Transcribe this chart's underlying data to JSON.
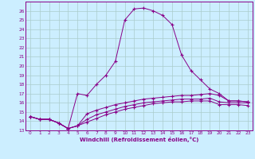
{
  "xlabel": "Windchill (Refroidissement éolien,°C)",
  "bg_color": "#cceeff",
  "grid_color": "#aacccc",
  "line_color": "#880088",
  "xlim": [
    -0.5,
    23.5
  ],
  "ylim": [
    13,
    27
  ],
  "xticks": [
    0,
    1,
    2,
    3,
    4,
    5,
    6,
    7,
    8,
    9,
    10,
    11,
    12,
    13,
    14,
    15,
    16,
    17,
    18,
    19,
    20,
    21,
    22,
    23
  ],
  "yticks": [
    13,
    14,
    15,
    16,
    17,
    18,
    19,
    20,
    21,
    22,
    23,
    24,
    25,
    26
  ],
  "line1_x": [
    0,
    1,
    2,
    3,
    4,
    5,
    6,
    7,
    8,
    9,
    10,
    11,
    12,
    13,
    14,
    15,
    16,
    17,
    18,
    19,
    20,
    21,
    22,
    23
  ],
  "line1_y": [
    14.5,
    14.2,
    14.2,
    13.8,
    13.2,
    17.0,
    16.8,
    18.0,
    19.0,
    20.5,
    25.0,
    26.2,
    26.3,
    26.0,
    25.5,
    24.5,
    21.2,
    19.5,
    18.5,
    17.5,
    17.0,
    16.2,
    16.2,
    16.1
  ],
  "line2_x": [
    0,
    1,
    2,
    3,
    4,
    5,
    6,
    7,
    8,
    9,
    10,
    11,
    12,
    13,
    14,
    15,
    16,
    17,
    18,
    19,
    20,
    21,
    22,
    23
  ],
  "line2_y": [
    14.5,
    14.2,
    14.2,
    13.8,
    13.2,
    13.5,
    14.8,
    15.2,
    15.5,
    15.8,
    16.0,
    16.2,
    16.4,
    16.5,
    16.6,
    16.7,
    16.8,
    16.8,
    16.9,
    17.0,
    16.8,
    16.2,
    16.2,
    16.1
  ],
  "line3_x": [
    0,
    1,
    2,
    3,
    4,
    5,
    6,
    7,
    8,
    9,
    10,
    11,
    12,
    13,
    14,
    15,
    16,
    17,
    18,
    19,
    20,
    21,
    22,
    23
  ],
  "line3_y": [
    14.5,
    14.2,
    14.2,
    13.8,
    13.2,
    13.5,
    14.2,
    14.7,
    15.0,
    15.3,
    15.6,
    15.8,
    16.0,
    16.1,
    16.2,
    16.3,
    16.4,
    16.4,
    16.4,
    16.5,
    16.1,
    16.0,
    16.0,
    16.0
  ],
  "line4_x": [
    0,
    1,
    2,
    3,
    4,
    5,
    6,
    7,
    8,
    9,
    10,
    11,
    12,
    13,
    14,
    15,
    16,
    17,
    18,
    19,
    20,
    21,
    22,
    23
  ],
  "line4_y": [
    14.5,
    14.2,
    14.2,
    13.8,
    13.2,
    13.5,
    13.9,
    14.3,
    14.7,
    15.0,
    15.3,
    15.5,
    15.7,
    15.9,
    16.0,
    16.1,
    16.1,
    16.2,
    16.2,
    16.2,
    15.8,
    15.8,
    15.8,
    15.7
  ]
}
